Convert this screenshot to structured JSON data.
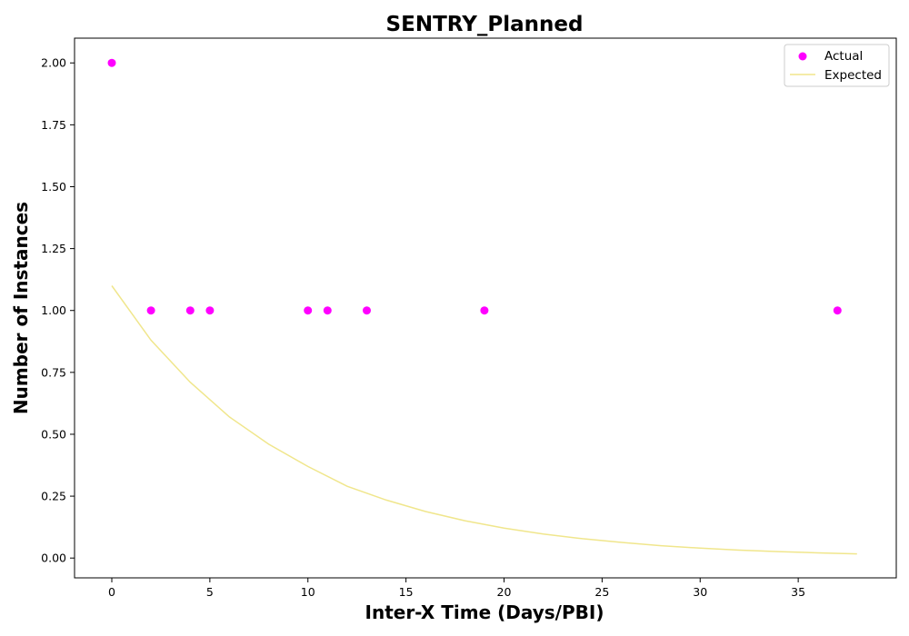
{
  "chart_data": {
    "type": "scatter",
    "title": "SENTRY_Planned",
    "xlabel": "Inter-X Time (Days/PBI)",
    "ylabel": "Number of Instances",
    "xlim": [
      -1.9,
      40.0
    ],
    "ylim": [
      -0.08,
      2.1
    ],
    "xticks": [
      0,
      5,
      10,
      15,
      20,
      25,
      30,
      35
    ],
    "yticks": [
      0.0,
      0.25,
      0.5,
      0.75,
      1.0,
      1.25,
      1.5,
      1.75,
      2.0
    ],
    "legend_position": "top-right",
    "series": [
      {
        "name": "Actual",
        "kind": "scatter",
        "color": "#ff00ff",
        "x": [
          0,
          2,
          4,
          5,
          10,
          11,
          13,
          19,
          37
        ],
        "y": [
          2,
          1,
          1,
          1,
          1,
          1,
          1,
          1,
          1
        ]
      },
      {
        "name": "Expected",
        "kind": "line",
        "color": "#f0e68c",
        "x": [
          0,
          2,
          4,
          6,
          8,
          10,
          12,
          14,
          16,
          18,
          20,
          22,
          24,
          26,
          28,
          30,
          32,
          34,
          36,
          38
        ],
        "y": [
          1.1,
          0.88,
          0.71,
          0.57,
          0.46,
          0.37,
          0.29,
          0.234,
          0.188,
          0.151,
          0.121,
          0.097,
          0.078,
          0.063,
          0.05,
          0.04,
          0.032,
          0.026,
          0.021,
          0.017
        ]
      }
    ]
  }
}
